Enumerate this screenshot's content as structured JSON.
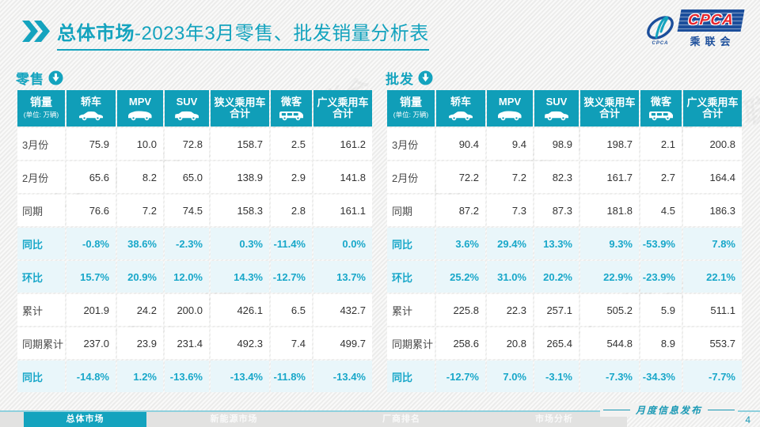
{
  "page": {
    "title_prefix": "总体市场",
    "title_suffix": "-2023年3月零售、批发销量分析表",
    "footer_note": "月度信息发布",
    "page_number": "4",
    "watermark_text": "CPCA乘联会"
  },
  "logo": {
    "acronym": "CPCA",
    "cn_name": "乘联会",
    "swoosh_caption": "CPCA"
  },
  "nav": {
    "items": [
      {
        "label": "总体市场",
        "active": true
      },
      {
        "label": "新能源市场",
        "active": false
      },
      {
        "label": "厂商排名",
        "active": false
      },
      {
        "label": "市场分析",
        "active": false
      }
    ]
  },
  "table_shared": {
    "corner_title": "销量",
    "corner_unit": "(单位: 万辆)",
    "columns": [
      {
        "label": "轿车",
        "icon": "sedan-icon"
      },
      {
        "label": "MPV",
        "icon": "mpv-icon"
      },
      {
        "label": "SUV",
        "icon": "suv-icon"
      },
      {
        "label": "狭义乘用车",
        "label2": "合计",
        "icon": null
      },
      {
        "label": "微客",
        "icon": "microvan-icon"
      },
      {
        "label": "广义乘用车",
        "label2": "合计",
        "icon": null
      }
    ]
  },
  "tables": [
    {
      "section_label": "零售",
      "rows": [
        {
          "label": "3月份",
          "highlight": false,
          "values": [
            "75.9",
            "10.0",
            "72.8",
            "158.7",
            "2.5",
            "161.2"
          ]
        },
        {
          "label": "2月份",
          "highlight": false,
          "values": [
            "65.6",
            "8.2",
            "65.0",
            "138.9",
            "2.9",
            "141.8"
          ]
        },
        {
          "label": "同期",
          "highlight": false,
          "values": [
            "76.6",
            "7.2",
            "74.5",
            "158.3",
            "2.8",
            "161.1"
          ]
        },
        {
          "label": "同比",
          "highlight": true,
          "values": [
            "-0.8%",
            "38.6%",
            "-2.3%",
            "0.3%",
            "-11.4%",
            "0.0%"
          ]
        },
        {
          "label": "环比",
          "highlight": true,
          "values": [
            "15.7%",
            "20.9%",
            "12.0%",
            "14.3%",
            "-12.7%",
            "13.7%"
          ]
        },
        {
          "label": "累计",
          "highlight": false,
          "values": [
            "201.9",
            "24.2",
            "200.0",
            "426.1",
            "6.5",
            "432.7"
          ]
        },
        {
          "label": "同期累计",
          "highlight": false,
          "values": [
            "237.0",
            "23.9",
            "231.4",
            "492.3",
            "7.4",
            "499.7"
          ]
        },
        {
          "label": "同比",
          "highlight": true,
          "values": [
            "-14.8%",
            "1.2%",
            "-13.6%",
            "-13.4%",
            "-11.8%",
            "-13.4%"
          ]
        }
      ]
    },
    {
      "section_label": "批发",
      "rows": [
        {
          "label": "3月份",
          "highlight": false,
          "values": [
            "90.4",
            "9.4",
            "98.9",
            "198.7",
            "2.1",
            "200.8"
          ]
        },
        {
          "label": "2月份",
          "highlight": false,
          "values": [
            "72.2",
            "7.2",
            "82.3",
            "161.7",
            "2.7",
            "164.4"
          ]
        },
        {
          "label": "同期",
          "highlight": false,
          "values": [
            "87.2",
            "7.3",
            "87.3",
            "181.8",
            "4.5",
            "186.3"
          ]
        },
        {
          "label": "同比",
          "highlight": true,
          "values": [
            "3.6%",
            "29.4%",
            "13.3%",
            "9.3%",
            "-53.9%",
            "7.8%"
          ]
        },
        {
          "label": "环比",
          "highlight": true,
          "values": [
            "25.2%",
            "31.0%",
            "20.2%",
            "22.9%",
            "-23.9%",
            "22.1%"
          ]
        },
        {
          "label": "累计",
          "highlight": false,
          "values": [
            "225.8",
            "22.3",
            "257.1",
            "505.2",
            "5.9",
            "511.1"
          ]
        },
        {
          "label": "同期累计",
          "highlight": false,
          "values": [
            "258.6",
            "20.8",
            "265.4",
            "544.8",
            "8.9",
            "553.7"
          ]
        },
        {
          "label": "同比",
          "highlight": true,
          "values": [
            "-12.7%",
            "7.0%",
            "-3.1%",
            "-7.3%",
            "-34.3%",
            "-7.7%"
          ]
        }
      ]
    }
  ],
  "colors": {
    "accent": "#14a3be",
    "table_header_bg": "#109eb8",
    "highlight_row_bg": "#e9f6fa",
    "highlight_text": "#18a7c9",
    "logo_blue": "#1b4e9b",
    "logo_red": "#e8262d",
    "footer_line": "#8fd0dd",
    "nav_bg": "#e2e2e1"
  }
}
